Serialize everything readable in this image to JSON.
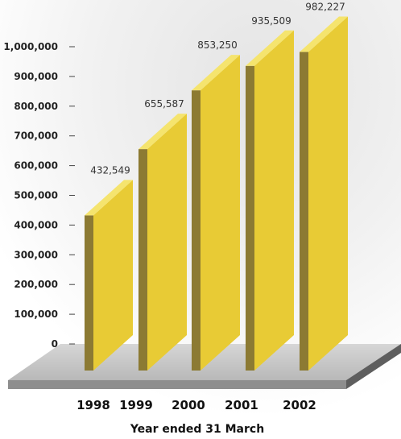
{
  "chart_data": {
    "type": "bar",
    "categories": [
      "1998",
      "1999",
      "2000",
      "2001",
      "2002"
    ],
    "values": [
      432549,
      655587,
      853250,
      935509,
      982227
    ],
    "data_labels": [
      "432,549",
      "655,587",
      "853,250",
      "935,509",
      "982,227"
    ],
    "y_ticks": [
      0,
      100000,
      200000,
      300000,
      400000,
      500000,
      600000,
      700000,
      800000,
      900000,
      1000000
    ],
    "y_tick_labels": [
      "0",
      "100,000",
      "200,000",
      "300,000",
      "400,000",
      "500,000",
      "600,000",
      "700,000",
      "800,000",
      "900,000",
      "1,000,000"
    ],
    "ylim": [
      0,
      1000000
    ],
    "title": "",
    "xlabel": "Year ended 31 March",
    "ylabel": "",
    "grid": false,
    "three_d": true,
    "colors": {
      "bar_front": "#e8cb35",
      "bar_side": "#8c7a33",
      "bar_top": "#f5e46e",
      "floor_top": "#c6c6c6",
      "floor_front": "#8e8e8e",
      "floor_side": "#5e5e5e"
    }
  }
}
